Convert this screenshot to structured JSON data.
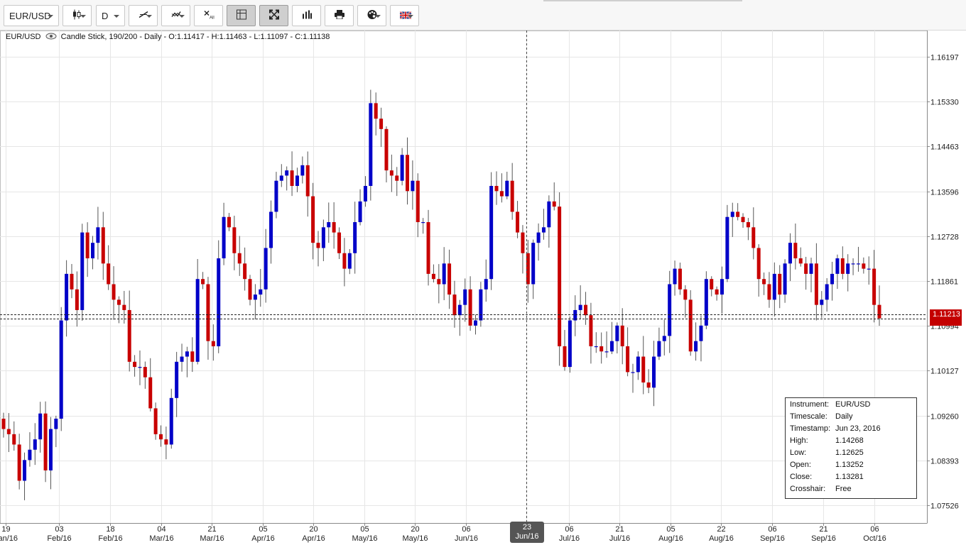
{
  "toolbar": {
    "instrument_label": "EUR/USD",
    "timeframe_label": "D",
    "buttons": [
      {
        "name": "chart-type-button",
        "icon": "candlestick-icon",
        "dropdown": true
      },
      {
        "name": "timeframe-button",
        "icon": "",
        "dropdown": true
      },
      {
        "name": "drawing-tools-button",
        "icon": "trendline-icon",
        "dropdown": true
      },
      {
        "name": "indicators-button",
        "icon": "indicator-icon",
        "dropdown": true
      },
      {
        "name": "remove-all-button",
        "icon": "remove-all-icon",
        "dropdown": false
      },
      {
        "name": "crosshair-button",
        "icon": "crosshair-icon",
        "dropdown": false
      },
      {
        "name": "fullscreen-button",
        "icon": "expand-icon",
        "dropdown": false
      },
      {
        "name": "volume-button",
        "icon": "bars-icon",
        "dropdown": false
      },
      {
        "name": "print-button",
        "icon": "printer-icon",
        "dropdown": false
      },
      {
        "name": "theme-button",
        "icon": "palette-icon",
        "dropdown": true
      },
      {
        "name": "language-button",
        "icon": "uk-flag-icon",
        "dropdown": true
      }
    ]
  },
  "info_bar": {
    "instrument": "EUR/USD",
    "details": "Candle Stick, 190/200 - Daily - O:1.11417 - H:1.11463 - L:1.11097 - C:1.11138"
  },
  "tooltip": [
    {
      "key": "Instrument:",
      "value": "EUR/USD"
    },
    {
      "key": "Timescale:",
      "value": "Daily"
    },
    {
      "key": "Timestamp:",
      "value": "Jun 23, 2016"
    },
    {
      "key": "High:",
      "value": "1.14268"
    },
    {
      "key": "Low:",
      "value": "1.12625"
    },
    {
      "key": "Open:",
      "value": "1.13252"
    },
    {
      "key": "Close:",
      "value": "1.13281"
    },
    {
      "key": "Crosshair:",
      "value": "Free"
    }
  ],
  "current_price": "1.11213",
  "crosshair_label": {
    "day": "23",
    "month": "Jun/16"
  },
  "colors": {
    "up": "#0000c8",
    "down": "#c80000",
    "grid": "#e6e6e6",
    "tag": "#c40000"
  },
  "chart_data": {
    "type": "candlestick",
    "title": "EUR/USD",
    "ylim": [
      1.0725,
      1.1665
    ],
    "y_ticks": [
      "1.16197",
      "1.15330",
      "1.14463",
      "1.13596",
      "1.12728",
      "1.11861",
      "1.10994",
      "1.10127",
      "1.09260",
      "1.08393",
      "1.07526"
    ],
    "x_ticks": [
      {
        "day": "19",
        "month": "Jan/16"
      },
      {
        "day": "03",
        "month": "Feb/16"
      },
      {
        "day": "18",
        "month": "Feb/16"
      },
      {
        "day": "04",
        "month": "Mar/16"
      },
      {
        "day": "21",
        "month": "Mar/16"
      },
      {
        "day": "05",
        "month": "Apr/16"
      },
      {
        "day": "20",
        "month": "Apr/16"
      },
      {
        "day": "05",
        "month": "May/16"
      },
      {
        "day": "20",
        "month": "May/16"
      },
      {
        "day": "06",
        "month": "Jun/16"
      },
      {
        "day": "23",
        "month": "Jun/16"
      },
      {
        "day": "06",
        "month": "Jul/16"
      },
      {
        "day": "21",
        "month": "Jul/16"
      },
      {
        "day": "05",
        "month": "Aug/16"
      },
      {
        "day": "22",
        "month": "Aug/16"
      },
      {
        "day": "06",
        "month": "Sep/16"
      },
      {
        "day": "21",
        "month": "Sep/16"
      },
      {
        "day": "06",
        "month": "Oct/16"
      }
    ],
    "closes": [
      1.09,
      1.089,
      1.087,
      1.08,
      1.084,
      1.086,
      1.088,
      1.093,
      1.082,
      1.09,
      1.092,
      1.111,
      1.12,
      1.117,
      1.113,
      1.128,
      1.123,
      1.126,
      1.129,
      1.122,
      1.118,
      1.115,
      1.114,
      1.113,
      1.103,
      1.102,
      1.102,
      1.1,
      1.094,
      1.089,
      1.088,
      1.087,
      1.096,
      1.103,
      1.104,
      1.105,
      1.103,
      1.119,
      1.118,
      1.107,
      1.106,
      1.123,
      1.131,
      1.129,
      1.124,
      1.122,
      1.119,
      1.115,
      1.116,
      1.117,
      1.125,
      1.132,
      1.138,
      1.139,
      1.14,
      1.137,
      1.139,
      1.141,
      1.135,
      1.126,
      1.125,
      1.129,
      1.13,
      1.128,
      1.124,
      1.121,
      1.124,
      1.13,
      1.134,
      1.137,
      1.153,
      1.15,
      1.148,
      1.14,
      1.139,
      1.138,
      1.143,
      1.136,
      1.138,
      1.13,
      1.13,
      1.12,
      1.119,
      1.118,
      1.122,
      1.116,
      1.112,
      1.114,
      1.117,
      1.11,
      1.111,
      1.117,
      1.119,
      1.137,
      1.136,
      1.135,
      1.138,
      1.132,
      1.128,
      1.124,
      1.118,
      1.126,
      1.128,
      1.129,
      1.134,
      1.133,
      1.106,
      1.102,
      1.111,
      1.113,
      1.114,
      1.112,
      1.106,
      1.106,
      1.105,
      1.105,
      1.107,
      1.11,
      1.106,
      1.101,
      1.101,
      1.104,
      1.099,
      1.098,
      1.104,
      1.107,
      1.108,
      1.118,
      1.121,
      1.117,
      1.115,
      1.105,
      1.107,
      1.11,
      1.119,
      1.117,
      1.116,
      1.119,
      1.131,
      1.132,
      1.131,
      1.13,
      1.129,
      1.125,
      1.119,
      1.118,
      1.115,
      1.12,
      1.116,
      1.122,
      1.126,
      1.123,
      1.122,
      1.12,
      1.122,
      1.114,
      1.115,
      1.118,
      1.12,
      1.123,
      1.12,
      1.122,
      1.122,
      1.122,
      1.121,
      1.121,
      1.114,
      1.1114
    ]
  }
}
